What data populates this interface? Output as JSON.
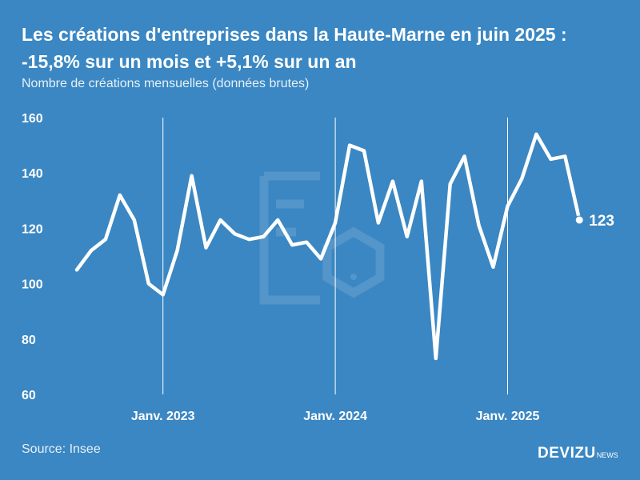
{
  "title": "Les créations d'entreprises dans la Haute-Marne en juin 2025 : -15,8% sur un mois et +5,1% sur un an",
  "subtitle": "Nombre de créations mensuelles (données brutes)",
  "source": "Source: Insee",
  "brand": {
    "name": "DEVIZU",
    "suffix": "NEWS"
  },
  "colors": {
    "background": "#3a87c3",
    "line": "#ffffff"
  },
  "chart_data": {
    "type": "line",
    "title": "Les créations d'entreprises dans la Haute-Marne en juin 2025 : -15,8% sur un mois et +5,1% sur un an",
    "ylabel": "",
    "xlabel": "",
    "ylim": [
      60,
      160
    ],
    "yticks": [
      60,
      80,
      100,
      120,
      140,
      160
    ],
    "ytick_labels": [
      "60",
      "80",
      "100",
      "120",
      "140",
      "160"
    ],
    "x": [
      "2022-07",
      "2022-08",
      "2022-09",
      "2022-10",
      "2022-11",
      "2022-12",
      "2023-01",
      "2023-02",
      "2023-03",
      "2023-04",
      "2023-05",
      "2023-06",
      "2023-07",
      "2023-08",
      "2023-09",
      "2023-10",
      "2023-11",
      "2023-12",
      "2024-01",
      "2024-02",
      "2024-03",
      "2024-04",
      "2024-05",
      "2024-06",
      "2024-07",
      "2024-08",
      "2024-09",
      "2024-10",
      "2024-11",
      "2024-12",
      "2025-01",
      "2025-02",
      "2025-03",
      "2025-04",
      "2025-05",
      "2025-06"
    ],
    "series": [
      {
        "values": [
          105,
          112,
          116,
          132,
          123,
          100,
          96,
          112,
          139,
          113,
          123,
          118,
          116,
          117,
          123,
          114,
          115,
          109,
          122,
          150,
          148,
          122,
          137,
          117,
          137,
          73,
          136,
          146,
          121,
          106,
          128,
          138,
          154,
          145,
          146,
          123
        ]
      }
    ],
    "vlines": [
      {
        "x": "2023-01",
        "label": "Janv. 2023"
      },
      {
        "x": "2024-01",
        "label": "Janv. 2024"
      },
      {
        "x": "2025-01",
        "label": "Janv. 2025"
      }
    ],
    "end_label": "123",
    "grid": false,
    "legend": "none"
  }
}
